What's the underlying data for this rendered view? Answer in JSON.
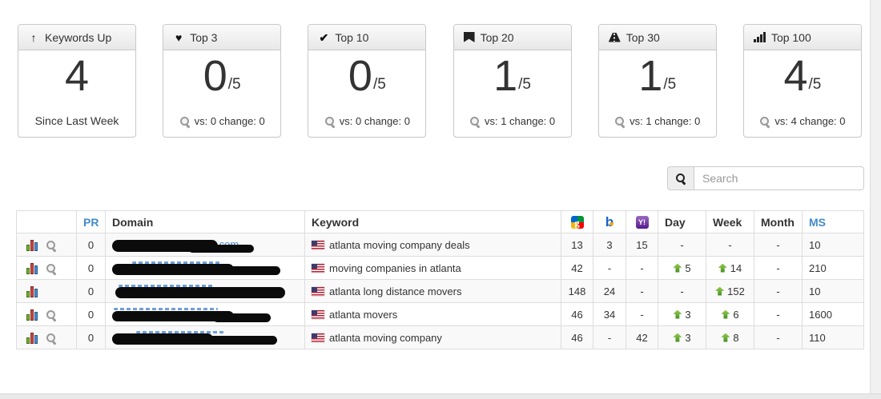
{
  "colors": {
    "link_blue": "#428bca",
    "row_stripe": "#f9f9f9",
    "arrow_green": "#3e8e1f",
    "table_border": "#dddddd",
    "redaction_black": "#0b0b0b"
  },
  "stat_cards": [
    {
      "icon": "arrow-up-icon",
      "title": "Keywords Up",
      "value": "4",
      "suffix": "",
      "footer": "Since Last Week",
      "has_magnifier": false
    },
    {
      "icon": "heart-icon",
      "title": "Top 3",
      "value": "0",
      "suffix": "/5",
      "footer": "vs: 0 change: 0",
      "has_magnifier": true
    },
    {
      "icon": "check-icon",
      "title": "Top 10",
      "value": "0",
      "suffix": "/5",
      "footer": "vs: 0 change: 0",
      "has_magnifier": true
    },
    {
      "icon": "bookmark-icon",
      "title": "Top 20",
      "value": "1",
      "suffix": "/5",
      "footer": "vs: 1 change: 0",
      "has_magnifier": true
    },
    {
      "icon": "road-icon",
      "title": "Top 30",
      "value": "1",
      "suffix": "/5",
      "footer": "vs: 1 change: 0",
      "has_magnifier": true
    },
    {
      "icon": "signal-icon",
      "title": "Top 100",
      "value": "4",
      "suffix": "/5",
      "footer": "vs: 4 change: 0",
      "has_magnifier": true
    }
  ],
  "search": {
    "placeholder": "Search"
  },
  "table": {
    "headers": {
      "actions": "",
      "pr": "PR",
      "domain": "Domain",
      "keyword": "Keyword",
      "day": "Day",
      "week": "Week",
      "month": "Month",
      "ms": "MS"
    },
    "engine_columns": [
      "google-icon",
      "bing-icon",
      "yahoo-icon"
    ],
    "rows": [
      {
        "actions": [
          "chart",
          "magnifier"
        ],
        "pr": "0",
        "domain_visible": "ers.com",
        "keyword": "atlanta moving company deals",
        "google": "13",
        "bing": "3",
        "yahoo": "15",
        "day": {
          "value": "-",
          "up": false
        },
        "week": {
          "value": "-",
          "up": false
        },
        "month": {
          "value": "-",
          "up": false
        },
        "ms": "10"
      },
      {
        "actions": [
          "chart",
          "magnifier"
        ],
        "pr": "0",
        "domain_visible": "",
        "keyword": "moving companies in atlanta",
        "google": "42",
        "bing": "-",
        "yahoo": "-",
        "day": {
          "value": "5",
          "up": true
        },
        "week": {
          "value": "14",
          "up": true
        },
        "month": {
          "value": "-",
          "up": false
        },
        "ms": "210"
      },
      {
        "actions": [
          "chart"
        ],
        "pr": "0",
        "domain_visible": "",
        "keyword": "atlanta long distance movers",
        "google": "148",
        "bing": "24",
        "yahoo": "-",
        "day": {
          "value": "-",
          "up": false
        },
        "week": {
          "value": "152",
          "up": true
        },
        "month": {
          "value": "-",
          "up": false
        },
        "ms": "10"
      },
      {
        "actions": [
          "chart",
          "magnifier"
        ],
        "pr": "0",
        "domain_visible": "",
        "keyword": "atlanta movers",
        "google": "46",
        "bing": "34",
        "yahoo": "-",
        "day": {
          "value": "3",
          "up": true
        },
        "week": {
          "value": "6",
          "up": true
        },
        "month": {
          "value": "-",
          "up": false
        },
        "ms": "1600"
      },
      {
        "actions": [
          "chart",
          "magnifier"
        ],
        "pr": "0",
        "domain_visible": "",
        "keyword": "atlanta moving company",
        "google": "46",
        "bing": "-",
        "yahoo": "42",
        "day": {
          "value": "3",
          "up": true
        },
        "week": {
          "value": "8",
          "up": true
        },
        "month": {
          "value": "-",
          "up": false
        },
        "ms": "110"
      }
    ]
  }
}
